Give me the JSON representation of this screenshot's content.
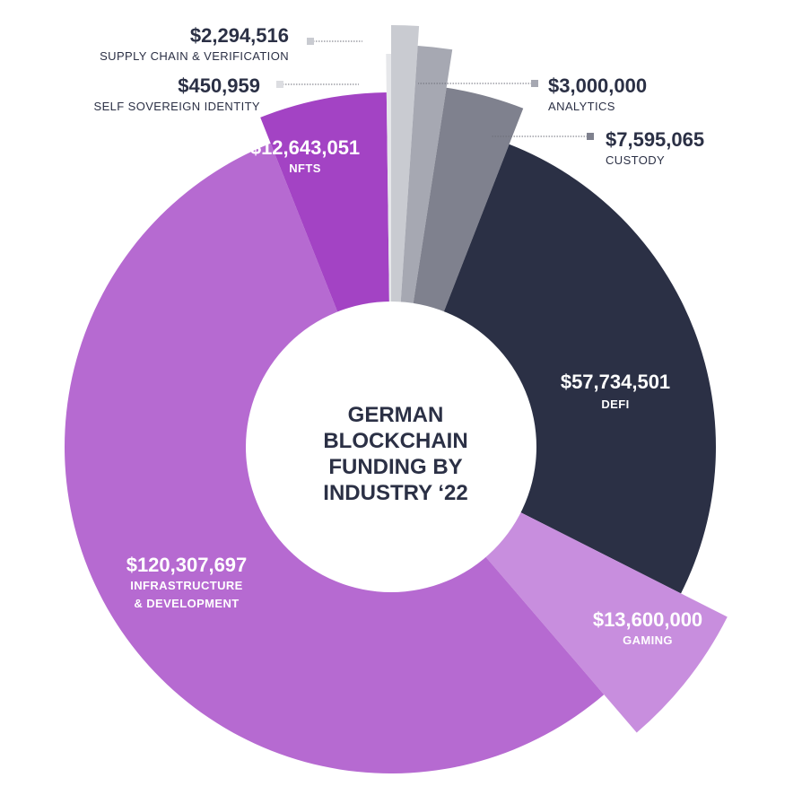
{
  "chart_data": {
    "type": "pie",
    "title": "GERMAN BLOCKCHAIN FUNDING BY INDUSTRY ‘22",
    "title_lines": [
      "GERMAN",
      "BLOCKCHAIN",
      "FUNDING BY",
      "INDUSTRY ‘22"
    ],
    "unit": "USD",
    "legend": "none",
    "slices": [
      {
        "label": "SUPPLY CHAIN & VERIFICATION",
        "value": 2294516,
        "value_label": "$2,294,516",
        "color": "#c9cbd1"
      },
      {
        "label": "ANALYTICS",
        "value": 3000000,
        "value_label": "$3,000,000",
        "color": "#a6a8b2"
      },
      {
        "label": "CUSTODY",
        "value": 7595065,
        "value_label": "$7,595,065",
        "color": "#7f818e"
      },
      {
        "label": "DEFI",
        "value": 57734501,
        "value_label": "$57,734,501",
        "color": "#2b3045"
      },
      {
        "label": "GAMING",
        "value": 13600000,
        "value_label": "$13,600,000",
        "color": "#c88ede"
      },
      {
        "label": "INFRASTRUCTURE & DEVELOPMENT",
        "value": 120307697,
        "value_label": "$120,307,697",
        "color": "#b66ad1",
        "label_lines": [
          "INFRASTRUCTURE",
          "& DEVELOPMENT"
        ]
      },
      {
        "label": "NFTS",
        "value": 12643051,
        "value_label": "$12,643,051",
        "color": "#a343c4"
      },
      {
        "label": "SELF SOVEREIGN IDENTITY",
        "value": 450959,
        "value_label": "$450,959",
        "color": "#e6e7ea"
      }
    ]
  }
}
